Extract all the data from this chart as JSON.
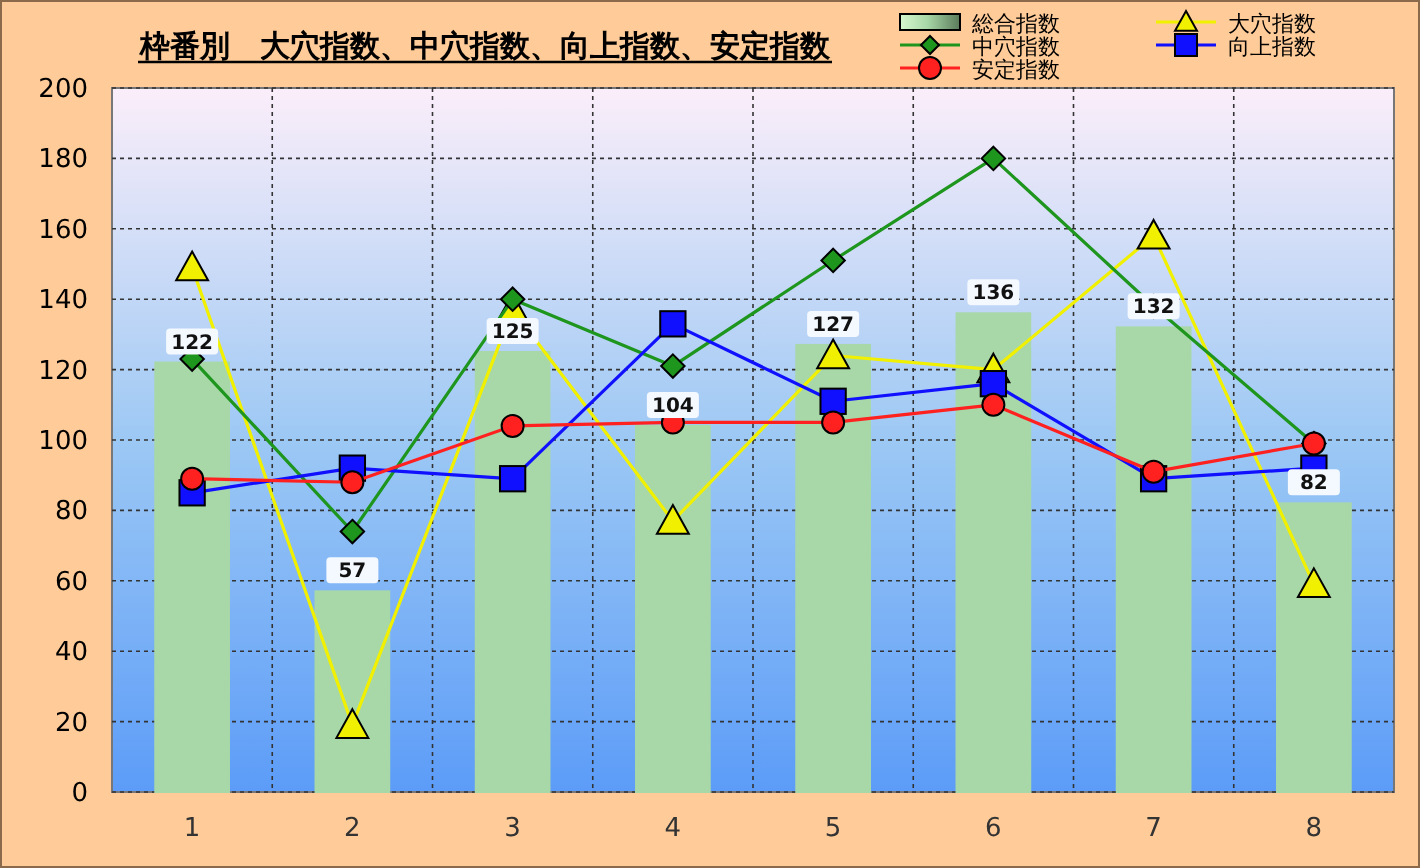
{
  "chart_data": {
    "type": "bar",
    "title": "枠番別　大穴指数、中穴指数、向上指数、安定指数",
    "categories": [
      "1",
      "2",
      "3",
      "4",
      "5",
      "6",
      "7",
      "8"
    ],
    "ylim": [
      0,
      200
    ],
    "yticks": [
      0,
      20,
      40,
      60,
      80,
      100,
      120,
      140,
      160,
      180,
      200
    ],
    "grid": true,
    "legend": "top right",
    "series": [
      {
        "name": "総合指数",
        "color": "#a8d8a8",
        "values": [
          122,
          57,
          125,
          104,
          127,
          136,
          132,
          82
        ],
        "value_labels": [
          "122",
          "57",
          "125",
          "104",
          "127",
          "136",
          "132",
          "82"
        ]
      },
      {
        "name": "大穴指数",
        "type": "line",
        "marker": "triangle",
        "color": "#f0f000",
        "values": [
          149,
          19,
          137,
          77,
          124,
          120,
          158,
          59
        ]
      },
      {
        "name": "中穴指数",
        "type": "line",
        "marker": "diamond",
        "color": "#1e961e",
        "values": [
          123,
          74,
          140,
          121,
          151,
          180,
          138,
          99
        ]
      },
      {
        "name": "向上指数",
        "type": "line",
        "marker": "square",
        "color": "#1010ff",
        "values": [
          85,
          92,
          89,
          133,
          111,
          116,
          89,
          92
        ]
      },
      {
        "name": "安定指数",
        "type": "line",
        "marker": "circle",
        "color": "#ff2020",
        "values": [
          89,
          88,
          104,
          105,
          105,
          110,
          91,
          99
        ]
      }
    ]
  }
}
